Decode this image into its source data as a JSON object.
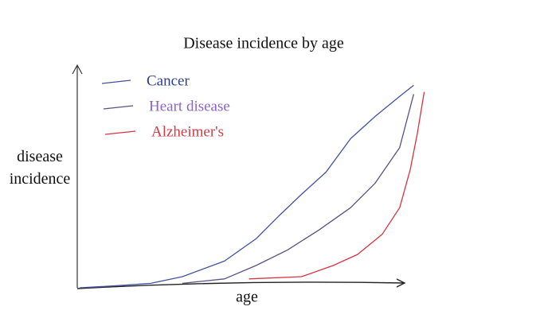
{
  "chart_data": {
    "type": "line",
    "title": "Disease incidence by age",
    "x_label": "age",
    "y_label": "disease incidence",
    "xlim": [
      0,
      100
    ],
    "ylim": [
      0,
      100
    ],
    "series": [
      {
        "name": "Cancer",
        "color": "#3f51a0",
        "label_color": "#2f3f8f",
        "x": [
          0.7,
          12,
          21,
          30,
          42,
          51,
          58,
          64,
          71,
          78,
          85,
          92,
          96
        ],
        "values": [
          0,
          1,
          2,
          5,
          12,
          22,
          33,
          42,
          52,
          67,
          77,
          86,
          91
        ]
      },
      {
        "name": "Heart disease",
        "color": "#5a4f86",
        "label_color": "#8a63cc",
        "x": [
          30,
          42,
          51,
          60,
          69,
          78,
          85,
          92,
          96
        ],
        "values": [
          2,
          4,
          10,
          17,
          26,
          36,
          47,
          63,
          87
        ]
      },
      {
        "name": "Alzheimer's",
        "color": "#d9323f",
        "label_color": "#d23a45",
        "x": [
          49,
          64,
          73,
          80,
          87,
          92,
          95,
          97,
          99
        ],
        "values": [
          4,
          5,
          10,
          15,
          24,
          36,
          53,
          69,
          88
        ]
      }
    ]
  }
}
